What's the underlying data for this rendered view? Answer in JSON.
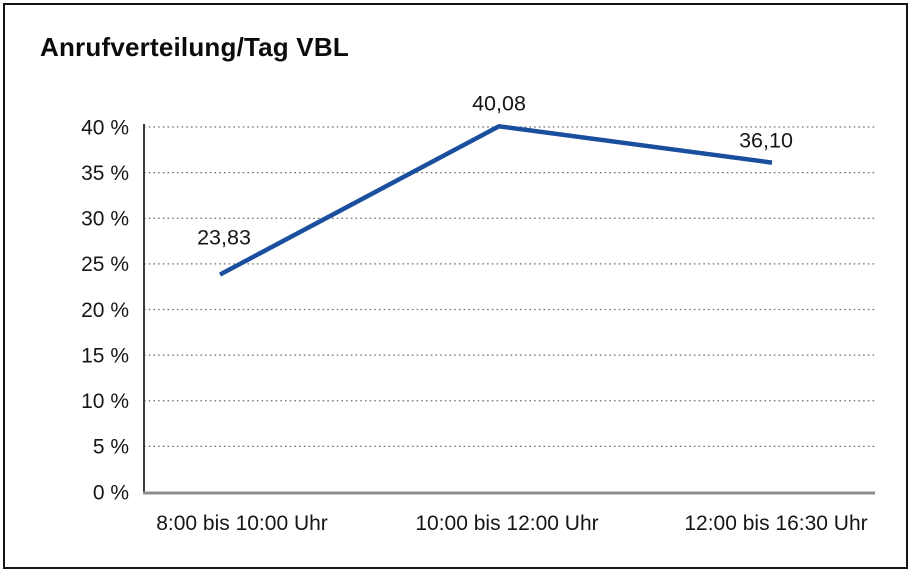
{
  "frame": {
    "background": "#ffffff",
    "border_color": "#141414"
  },
  "chart_data": {
    "type": "line",
    "title": "Anrufverteilung/Tag VBL",
    "categories": [
      "8:00 bis 10:00 Uhr",
      "10:00 bis 12:00 Uhr",
      "12:00 bis 16:30 Uhr"
    ],
    "values": [
      23.83,
      40.08,
      36.1
    ],
    "data_labels": [
      "23,83",
      "40,08",
      "36,10"
    ],
    "xlabel": "",
    "ylabel": "",
    "ylim": [
      0,
      40
    ],
    "yticks": [
      0,
      5,
      10,
      15,
      20,
      25,
      30,
      35,
      40
    ],
    "ytick_labels": [
      "0 %",
      "5 %",
      "10 %",
      "15 %",
      "20 %",
      "25 %",
      "30 %",
      "35 %",
      "40 %"
    ],
    "grid": "horizontal-dotted",
    "legend": "none",
    "line_color": "#1A4F9E",
    "grid_color": "#6f6f6f",
    "axis_y_color": "#3c3c3c",
    "axis_x_color": "#8d8d8d",
    "text_color": "#161616"
  }
}
